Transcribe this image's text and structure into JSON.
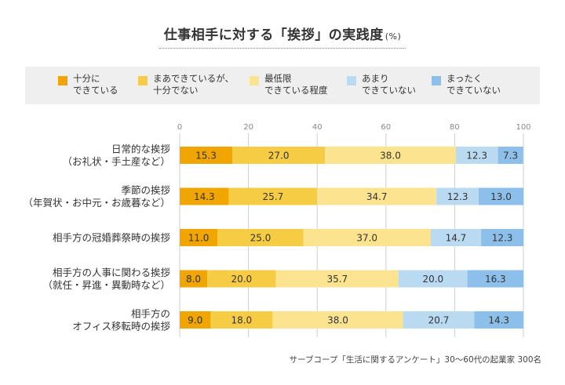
{
  "title": "仕事相手に対する「挨拶」の実践度",
  "title_unit": "(%)",
  "footnote": "サーブコープ「生活に関するアンケート」30〜60代の起業家 300名",
  "legend": [
    {
      "label": "十分に\nできている",
      "color": "#f0a500"
    },
    {
      "label": "まあできているが、\n十分でない",
      "color": "#f6cc45"
    },
    {
      "label": "最低限\nできている程度",
      "color": "#fbe38f"
    },
    {
      "label": "あまり\nできていない",
      "color": "#b9daf0"
    },
    {
      "label": "まったく\nできていない",
      "color": "#8cbfe9"
    }
  ],
  "chart_data": {
    "type": "bar",
    "orientation": "horizontal",
    "stacked": true,
    "title": "仕事相手に対する「挨拶」の実践度",
    "xlabel": "",
    "ylabel": "",
    "xlim": [
      0,
      100
    ],
    "xticks": [
      0,
      20,
      40,
      60,
      80,
      100
    ],
    "grid": true,
    "legend_position": "top",
    "categories": [
      "日常的な挨拶\n（お礼状・手土産など）",
      "季節の挨拶\n（年賀状・お中元・お歳暮など）",
      "相手方の冠婚葬祭時の挨拶",
      "相手方の人事に関わる挨拶\n（就任・昇進・異動時など）",
      "相手方の\nオフィス移転時の挨拶"
    ],
    "series": [
      {
        "name": "十分にできている",
        "color": "#f0a500",
        "values": [
          15.3,
          14.3,
          11.0,
          8.0,
          9.0
        ]
      },
      {
        "name": "まあできているが、十分でない",
        "color": "#f6cc45",
        "values": [
          27.0,
          25.7,
          25.0,
          20.0,
          18.0
        ]
      },
      {
        "name": "最低限できている程度",
        "color": "#fbe38f",
        "values": [
          38.0,
          34.7,
          37.0,
          35.7,
          38.0
        ]
      },
      {
        "name": "あまりできていない",
        "color": "#b9daf0",
        "values": [
          12.3,
          12.3,
          14.7,
          20.0,
          20.7
        ]
      },
      {
        "name": "まったくできていない",
        "color": "#8cbfe9",
        "values": [
          7.3,
          13.0,
          12.3,
          16.3,
          14.3
        ]
      }
    ]
  }
}
